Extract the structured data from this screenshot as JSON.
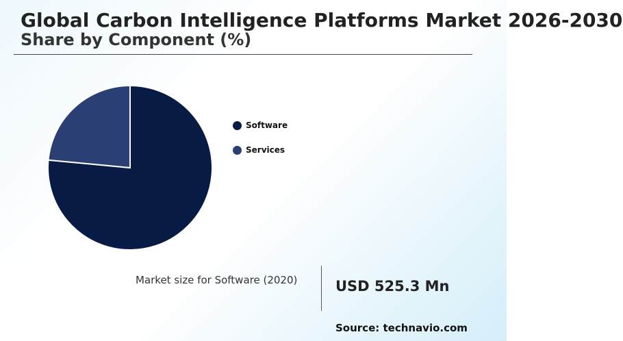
{
  "header": {
    "title": "Global Carbon Intelligence Platforms Market 2026-2030",
    "subtitle": "Share by Component (%)"
  },
  "chart_data": {
    "type": "pie",
    "categories": [
      "Software",
      "Services"
    ],
    "values": [
      76.5,
      23.5
    ],
    "colors": [
      "#071b44",
      "#2a3f73"
    ],
    "legend_position": "right"
  },
  "kpi": {
    "label": "Market size for Software (2020)",
    "value": "USD 525.3 Mn"
  },
  "footer": {
    "source": "Source: technavio.com"
  }
}
